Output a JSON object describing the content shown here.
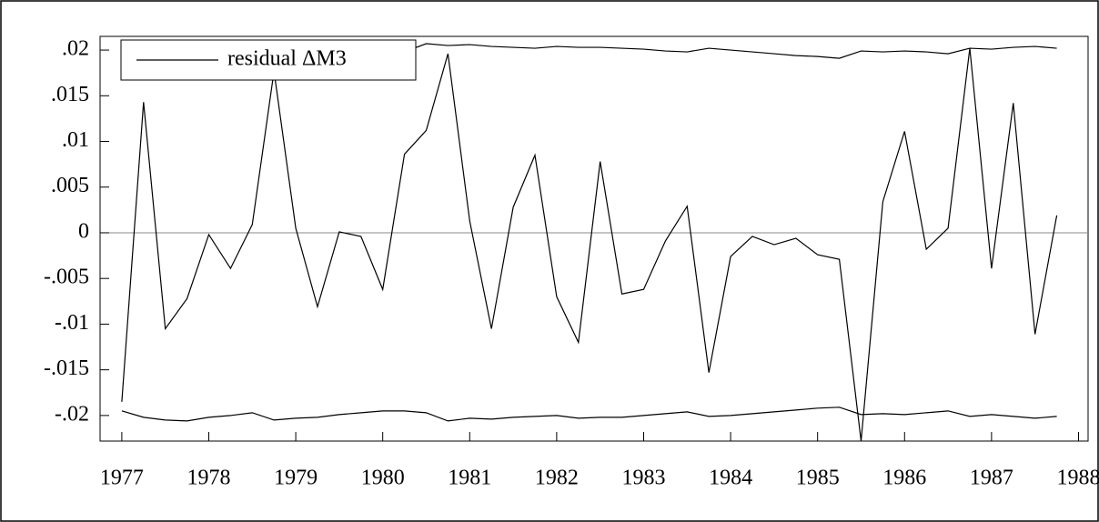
{
  "chart_data": {
    "type": "line",
    "x": [
      1977,
      1977.25,
      1977.5,
      1977.75,
      1978,
      1978.25,
      1978.5,
      1978.75,
      1979,
      1979.25,
      1979.5,
      1979.75,
      1980,
      1980.25,
      1980.5,
      1980.75,
      1981,
      1981.25,
      1981.5,
      1981.75,
      1982,
      1982.25,
      1982.5,
      1982.75,
      1983,
      1983.25,
      1983.5,
      1983.75,
      1984,
      1984.25,
      1984.5,
      1984.75,
      1985,
      1985.25,
      1985.5,
      1985.75,
      1986,
      1986.25,
      1986.5,
      1986.75,
      1987,
      1987.25,
      1987.5,
      1987.75
    ],
    "series": [
      {
        "name": "residual ΔM3",
        "color": "#000000",
        "values": [
          -0.0185,
          0.0143,
          -0.0105,
          -0.0072,
          -0.0002,
          -0.0039,
          0.0009,
          0.0177,
          0.0005,
          -0.0081,
          0.0001,
          -0.0004,
          -0.0062,
          0.0086,
          0.0112,
          0.0196,
          0.0013,
          -0.0105,
          0.0028,
          0.0085,
          -0.007,
          -0.012,
          0.0078,
          -0.0067,
          -0.0062,
          -0.0009,
          0.0029,
          -0.0153,
          -0.0026,
          -0.0004,
          -0.0013,
          -0.0006,
          -0.0024,
          -0.0029,
          -0.0228,
          0.0034,
          0.0111,
          -0.0018,
          0.0005,
          0.0202,
          -0.0039,
          0.0142,
          -0.0111,
          0.0019
        ]
      },
      {
        "color": "#000000",
        "values": [
          0.0196,
          0.0203,
          0.0206,
          0.0207,
          0.0204,
          0.0201,
          0.0198,
          0.0207,
          0.0204,
          0.0204,
          0.0202,
          0.0197,
          0.0197,
          0.0198,
          0.0207,
          0.0205,
          0.0206,
          0.0204,
          0.0203,
          0.0202,
          0.0204,
          0.0203,
          0.0203,
          0.0202,
          0.0201,
          0.0199,
          0.0198,
          0.0202,
          0.02,
          0.0198,
          0.0196,
          0.0194,
          0.0193,
          0.0191,
          0.0199,
          0.0198,
          0.0199,
          0.0198,
          0.0196,
          0.0202,
          0.0201,
          0.0203,
          0.0204,
          0.0202
        ]
      },
      {
        "color": "#000000",
        "values": [
          -0.0195,
          -0.0202,
          -0.0205,
          -0.0206,
          -0.0202,
          -0.02,
          -0.0197,
          -0.0205,
          -0.0203,
          -0.0202,
          -0.0199,
          -0.0197,
          -0.0195,
          -0.0195,
          -0.0197,
          -0.0206,
          -0.0203,
          -0.0204,
          -0.0202,
          -0.0201,
          -0.02,
          -0.0203,
          -0.0202,
          -0.0202,
          -0.02,
          -0.0198,
          -0.0196,
          -0.0201,
          -0.02,
          -0.0198,
          -0.0196,
          -0.0194,
          -0.0192,
          -0.0191,
          -0.0199,
          -0.0198,
          -0.0199,
          -0.0197,
          -0.0195,
          -0.0201,
          -0.0199,
          -0.0201,
          -0.0203,
          -0.0201
        ]
      }
    ],
    "xlim": [
      1976.75,
      1988.11
    ],
    "xticks": [
      1977,
      1978,
      1979,
      1980,
      1981,
      1982,
      1983,
      1984,
      1985,
      1986,
      1987,
      1988
    ],
    "ylim": [
      -0.0228,
      0.0215
    ],
    "yticks": [
      {
        "value": 0.02,
        "label": ".02"
      },
      {
        "value": 0.015,
        "label": ".015"
      },
      {
        "value": 0.01,
        "label": ".01"
      },
      {
        "value": 0.005,
        "label": ".005"
      },
      0,
      {
        "value": -0.005,
        "label": "-.005"
      },
      {
        "value": -0.01,
        "label": "-.01"
      },
      {
        "value": -0.015,
        "label": "-.015"
      },
      {
        "value": -0.02,
        "label": "-.02"
      }
    ],
    "legend": "upper left"
  }
}
